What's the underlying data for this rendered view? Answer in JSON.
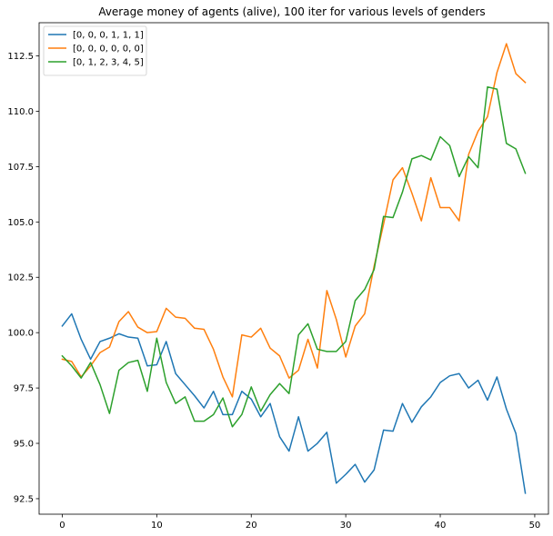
{
  "chart_data": {
    "type": "line",
    "title": "Average money of agents (alive), 100 iter for various levels of genders",
    "xlabel": "",
    "ylabel": "",
    "xlim": [
      -2.45,
      51.45
    ],
    "ylim": [
      91.8,
      114.0
    ],
    "xticks": [
      0,
      10,
      20,
      30,
      40,
      50
    ],
    "yticks": [
      92.5,
      95.0,
      97.5,
      100.0,
      102.5,
      105.0,
      107.5,
      110.0,
      112.5
    ],
    "ytick_labels": [
      "92.5",
      "95.0",
      "97.5",
      "100.0",
      "102.5",
      "105.0",
      "107.5",
      "110.0",
      "112.5"
    ],
    "grid": false,
    "legend_position": "top-left",
    "x": [
      0,
      1,
      2,
      3,
      4,
      5,
      6,
      7,
      8,
      9,
      10,
      11,
      12,
      13,
      14,
      15,
      16,
      17,
      18,
      19,
      20,
      21,
      22,
      23,
      24,
      25,
      26,
      27,
      28,
      29,
      30,
      31,
      32,
      33,
      34,
      35,
      36,
      37,
      38,
      39,
      40,
      41,
      42,
      43,
      44,
      45,
      46,
      47,
      48,
      49
    ],
    "series": [
      {
        "name": "[0, 0, 0, 1, 1, 1]",
        "color": "#1f77b4",
        "values": [
          100.3,
          100.85,
          99.7,
          98.8,
          99.6,
          99.75,
          99.95,
          99.8,
          99.75,
          98.5,
          98.55,
          99.6,
          98.15,
          97.65,
          97.15,
          96.6,
          97.35,
          96.3,
          96.3,
          97.35,
          97.0,
          96.2,
          96.8,
          95.3,
          94.65,
          96.2,
          94.65,
          95.0,
          95.5,
          93.2,
          93.6,
          94.05,
          93.25,
          93.8,
          95.6,
          95.55,
          96.8,
          95.95,
          96.65,
          97.1,
          97.75,
          98.05,
          98.15,
          97.5,
          97.85,
          96.95,
          98.0,
          96.55,
          95.45,
          92.75
        ]
      },
      {
        "name": "[0, 0, 0, 0, 0, 0]",
        "color": "#ff7f0e",
        "values": [
          98.8,
          98.7,
          98.0,
          98.5,
          99.1,
          99.35,
          100.5,
          100.95,
          100.25,
          100.0,
          100.05,
          101.1,
          100.7,
          100.65,
          100.2,
          100.15,
          99.25,
          98.0,
          97.1,
          99.9,
          99.8,
          100.2,
          99.3,
          98.95,
          97.95,
          98.3,
          99.7,
          98.4,
          101.9,
          100.6,
          98.9,
          100.3,
          100.85,
          103.0,
          104.9,
          106.9,
          107.45,
          106.3,
          105.05,
          107.0,
          105.65,
          105.65,
          105.05,
          108.05,
          109.1,
          109.75,
          111.75,
          113.05,
          111.7,
          111.3
        ]
      },
      {
        "name": "[0, 1, 2, 3, 4, 5]",
        "color": "#2ca02c",
        "values": [
          98.95,
          98.5,
          97.95,
          98.65,
          97.65,
          96.35,
          98.3,
          98.65,
          98.75,
          97.35,
          99.75,
          97.75,
          96.8,
          97.1,
          96.0,
          96.0,
          96.3,
          97.05,
          95.75,
          96.3,
          97.55,
          96.45,
          97.2,
          97.7,
          97.25,
          99.9,
          100.4,
          99.25,
          99.15,
          99.15,
          99.6,
          101.45,
          101.95,
          102.85,
          105.25,
          105.2,
          106.35,
          107.85,
          108.0,
          107.8,
          108.85,
          108.45,
          107.05,
          107.95,
          107.45,
          111.1,
          111.0,
          108.55,
          108.3,
          107.2
        ]
      }
    ]
  }
}
